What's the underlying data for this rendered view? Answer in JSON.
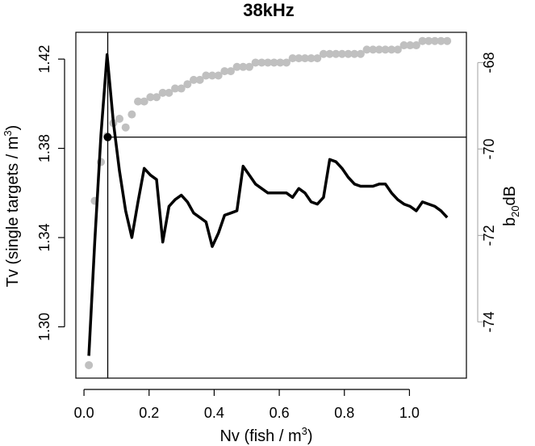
{
  "chart_data": {
    "type": "line",
    "title": "38kHz",
    "xlabel": "Nv (fish / m",
    "xlabel_sup": "3",
    "xlabel_end": ")",
    "ylabel_left": "Tv (single targets / m",
    "ylabel_left_sup": "3",
    "ylabel_left_end": ")",
    "ylabel_right": "b",
    "ylabel_right_sub": "20",
    "ylabel_right_end": "dB",
    "xlim": [
      -0.025,
      1.175
    ],
    "ylim_left": [
      1.277,
      1.432
    ],
    "ylim_right": [
      -75.3,
      -67.3
    ],
    "x_ticks": [
      0.0,
      0.2,
      0.4,
      0.6,
      0.8,
      1.0
    ],
    "x_tick_labels": [
      "0.0",
      "0.2",
      "0.4",
      "0.6",
      "0.8",
      "1.0"
    ],
    "y_left_ticks": [
      1.3,
      1.34,
      1.38,
      1.42
    ],
    "y_left_tick_labels": [
      "1.30",
      "1.34",
      "1.38",
      "1.42"
    ],
    "y_right_ticks": [
      -74,
      -72,
      -70,
      -68
    ],
    "y_right_tick_labels": [
      "-74",
      "-72",
      "-70",
      "-68"
    ],
    "grid": false,
    "series": [
      {
        "axis": "left",
        "style": "line",
        "color": "#000000",
        "x": [
          0.015,
          0.033,
          0.052,
          0.071,
          0.09,
          0.109,
          0.128,
          0.147,
          0.166,
          0.185,
          0.204,
          0.223,
          0.242,
          0.261,
          0.28,
          0.299,
          0.318,
          0.337,
          0.356,
          0.375,
          0.394,
          0.413,
          0.432,
          0.451,
          0.47,
          0.489,
          0.508,
          0.527,
          0.546,
          0.565,
          0.584,
          0.603,
          0.622,
          0.641,
          0.66,
          0.679,
          0.698,
          0.717,
          0.736,
          0.755,
          0.774,
          0.793,
          0.812,
          0.831,
          0.85,
          0.869,
          0.888,
          0.907,
          0.926,
          0.945,
          0.964,
          0.983,
          1.002,
          1.021,
          1.04,
          1.059,
          1.078,
          1.097,
          1.116
        ],
        "y": [
          1.287,
          1.338,
          1.386,
          1.422,
          1.392,
          1.37,
          1.352,
          1.34,
          1.356,
          1.371,
          1.368,
          1.366,
          1.338,
          1.354,
          1.357,
          1.359,
          1.356,
          1.351,
          1.349,
          1.347,
          1.336,
          1.342,
          1.35,
          1.351,
          1.352,
          1.372,
          1.368,
          1.364,
          1.362,
          1.36,
          1.36,
          1.36,
          1.36,
          1.358,
          1.362,
          1.36,
          1.356,
          1.355,
          1.358,
          1.375,
          1.374,
          1.371,
          1.367,
          1.364,
          1.363,
          1.363,
          1.363,
          1.364,
          1.364,
          1.36,
          1.357,
          1.355,
          1.354,
          1.352,
          1.356,
          1.355,
          1.354,
          1.352,
          1.349
        ]
      },
      {
        "axis": "right",
        "style": "points",
        "color": "#c0c0c0",
        "x": [
          0.015,
          0.033,
          0.052,
          0.071,
          0.09,
          0.109,
          0.128,
          0.147,
          0.166,
          0.185,
          0.204,
          0.223,
          0.242,
          0.261,
          0.28,
          0.299,
          0.318,
          0.337,
          0.356,
          0.375,
          0.394,
          0.413,
          0.432,
          0.451,
          0.47,
          0.489,
          0.508,
          0.527,
          0.546,
          0.565,
          0.584,
          0.603,
          0.622,
          0.641,
          0.66,
          0.679,
          0.698,
          0.717,
          0.736,
          0.755,
          0.774,
          0.793,
          0.812,
          0.831,
          0.85,
          0.869,
          0.888,
          0.907,
          0.926,
          0.945,
          0.964,
          0.983,
          1.002,
          1.021,
          1.04,
          1.059,
          1.078,
          1.097,
          1.116
        ],
        "y": [
          -75.0,
          -71.2,
          -70.3,
          -69.7,
          -69.4,
          -69.3,
          -69.5,
          -69.2,
          -68.9,
          -68.9,
          -68.8,
          -68.8,
          -68.7,
          -68.7,
          -68.6,
          -68.6,
          -68.5,
          -68.4,
          -68.4,
          -68.3,
          -68.3,
          -68.3,
          -68.2,
          -68.2,
          -68.1,
          -68.1,
          -68.1,
          -68.0,
          -68.0,
          -68.0,
          -68.0,
          -68.0,
          -68.0,
          -67.9,
          -67.9,
          -67.9,
          -67.9,
          -67.9,
          -67.8,
          -67.8,
          -67.8,
          -67.8,
          -67.8,
          -67.8,
          -67.8,
          -67.7,
          -67.7,
          -67.7,
          -67.7,
          -67.7,
          -67.7,
          -67.6,
          -67.6,
          -67.6,
          -67.5,
          -67.5,
          -67.5,
          -67.5,
          -67.5
        ]
      }
    ],
    "reference_point": {
      "x": 0.073,
      "y": 1.385
    },
    "reference_vline_x": 0.073,
    "reference_hline_y": 1.385
  }
}
